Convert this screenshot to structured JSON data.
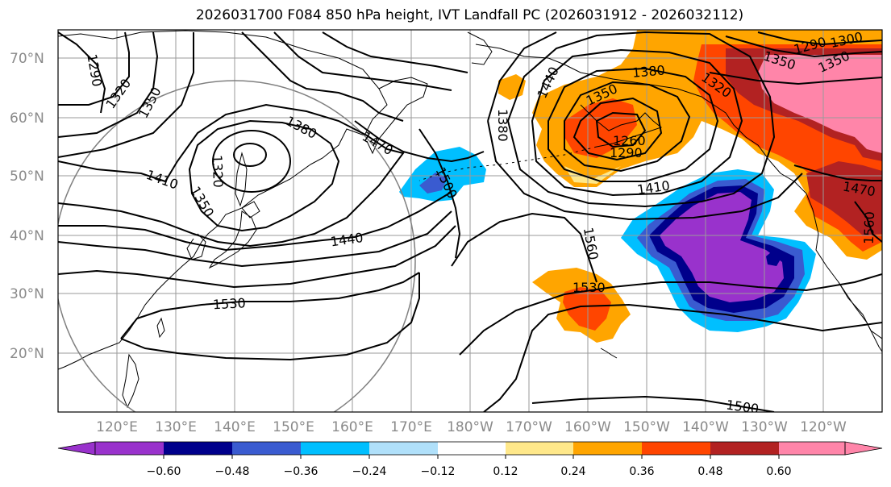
{
  "title": "2026031700 F084 850 hPa height, IVT Landfall PC (2026031912 - 2026032112)",
  "lat_labels": [
    "70°N",
    "60°N",
    "50°N",
    "40°N",
    "30°N",
    "20°N"
  ],
  "lon_labels": [
    "120°E",
    "130°E",
    "140°E",
    "150°E",
    "160°E",
    "170°E",
    "180°W",
    "170°W",
    "160°W",
    "150°W",
    "140°W",
    "130°W",
    "120°W"
  ],
  "contour_labels": [
    "1290",
    "1320",
    "1350",
    "1380",
    "1470",
    "1410",
    "1350",
    "1320",
    "1440",
    "1530",
    "1500",
    "1560",
    "1530",
    "1440",
    "1350",
    "1380",
    "1320",
    "1260",
    "1290",
    "1410",
    "1470",
    "1560",
    "1500",
    "1350",
    "1290",
    "1300",
    "1350",
    "1380"
  ],
  "colorbar": {
    "ticks": [
      "−0.60",
      "−0.48",
      "−0.36",
      "−0.24",
      "−0.12",
      "0.12",
      "0.24",
      "0.36",
      "0.48",
      "0.60"
    ],
    "colors": [
      "#9932cc",
      "#00008b",
      "#3a5bd0",
      "#00bfff",
      "#b0e0fa",
      "#ffffff",
      "#ffe88a",
      "#ffa500",
      "#ff4500",
      "#b22222",
      "#ff85a9"
    ]
  },
  "fill_colors": {
    "purple": "#9932cc",
    "navy": "#00008b",
    "blue": "#3a5bd0",
    "cyan": "#00bfff",
    "lightblue": "#b0e0fa",
    "yellow": "#ffe88a",
    "orange": "#ffa500",
    "redorange": "#ff4500",
    "darkred": "#b22222",
    "pink": "#ff85a9"
  }
}
